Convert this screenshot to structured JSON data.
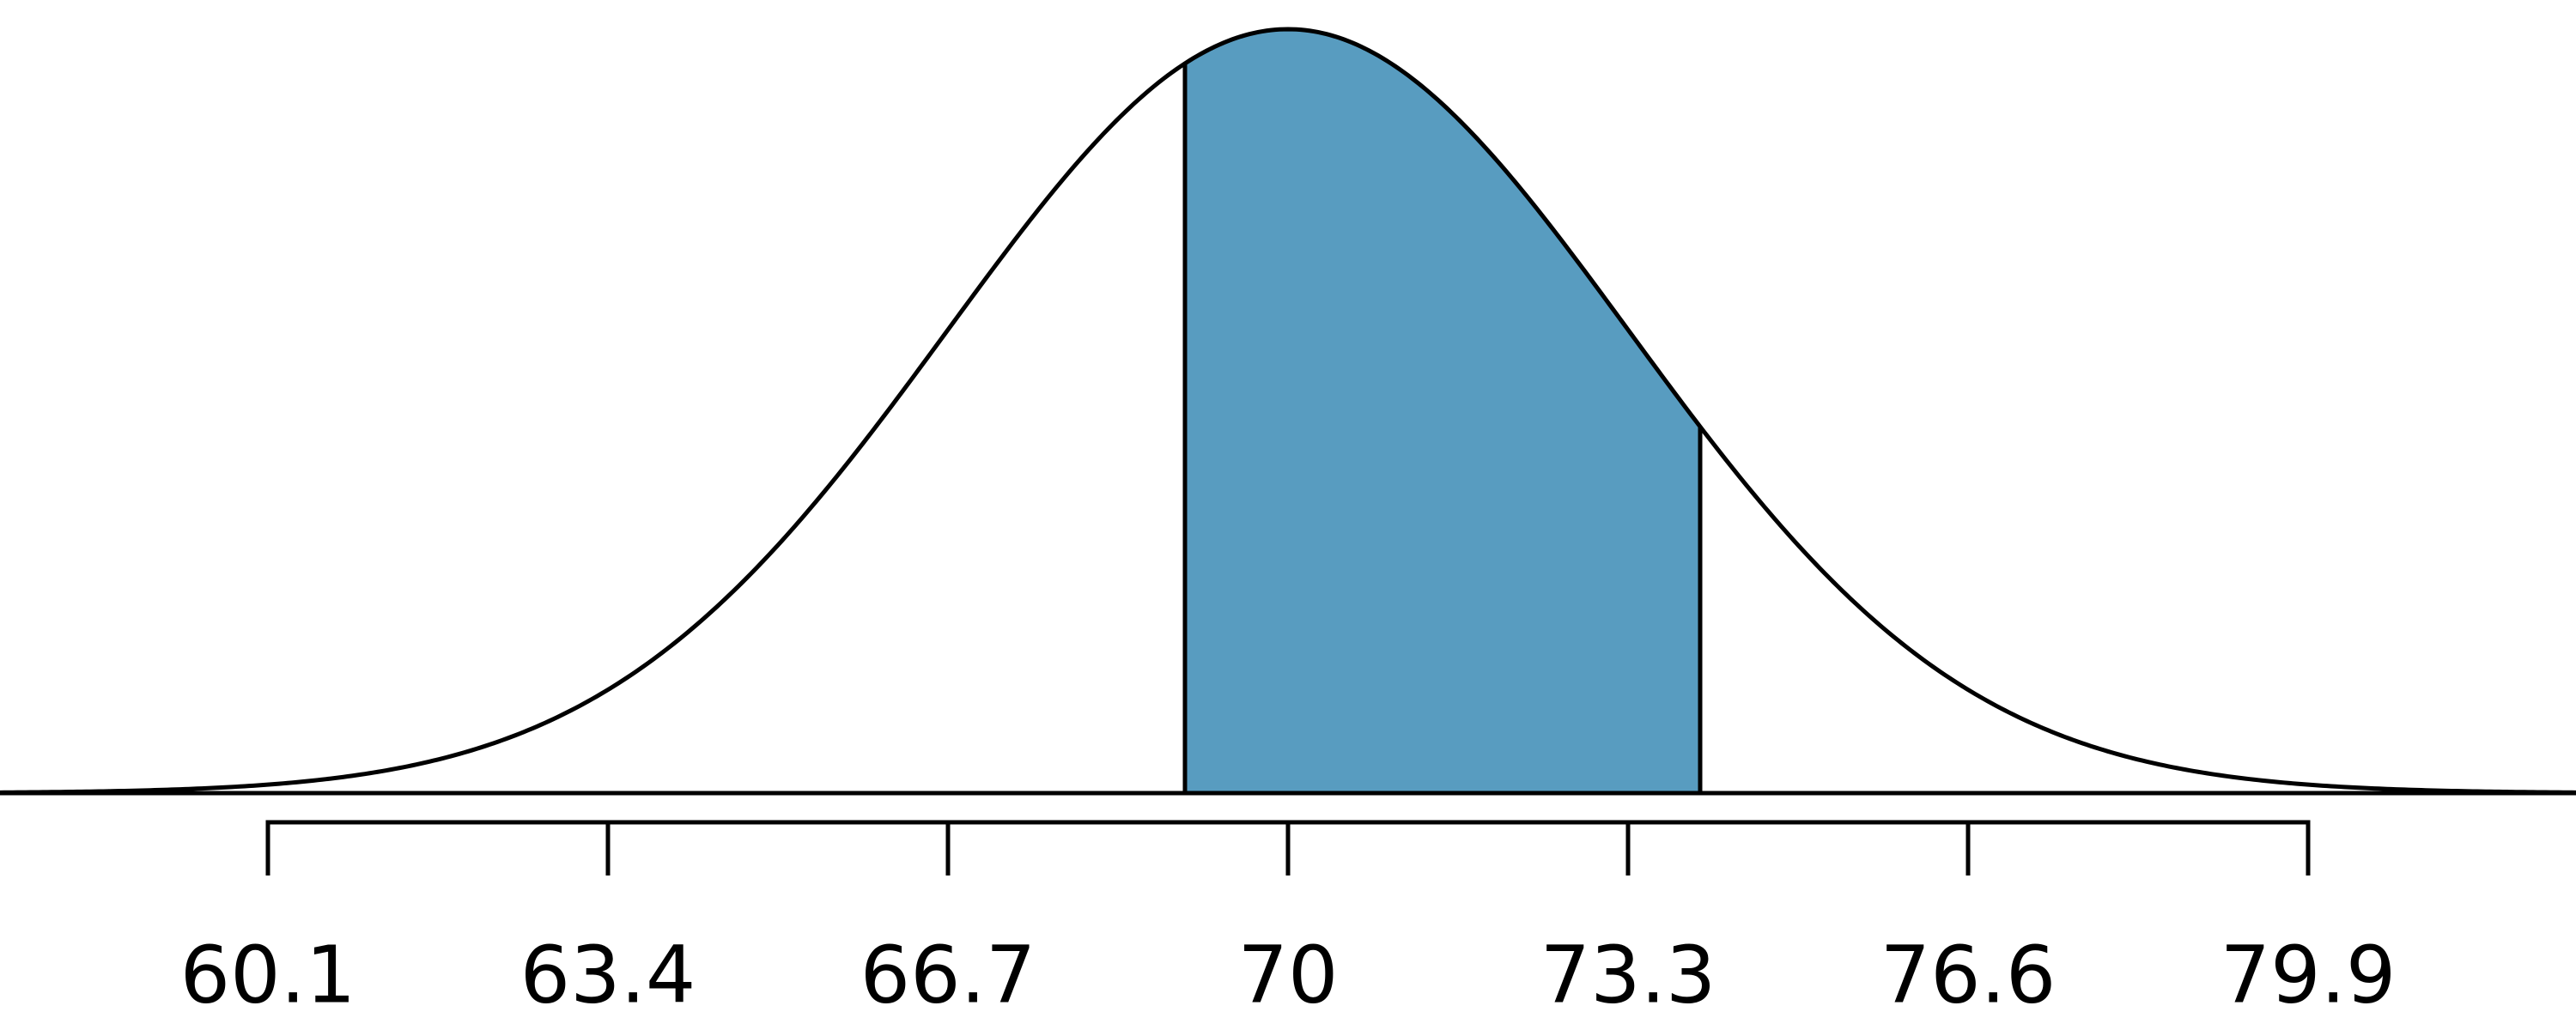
{
  "chart_data": {
    "type": "normal",
    "mean": 70,
    "sd": 3.3,
    "shade": [
      69,
      74
    ],
    "color": "#589cc0",
    "xlim": [
      57.5,
      82.5
    ],
    "xticks": [
      60.1,
      63.4,
      66.7,
      70,
      73.3,
      76.6,
      79.9
    ]
  }
}
